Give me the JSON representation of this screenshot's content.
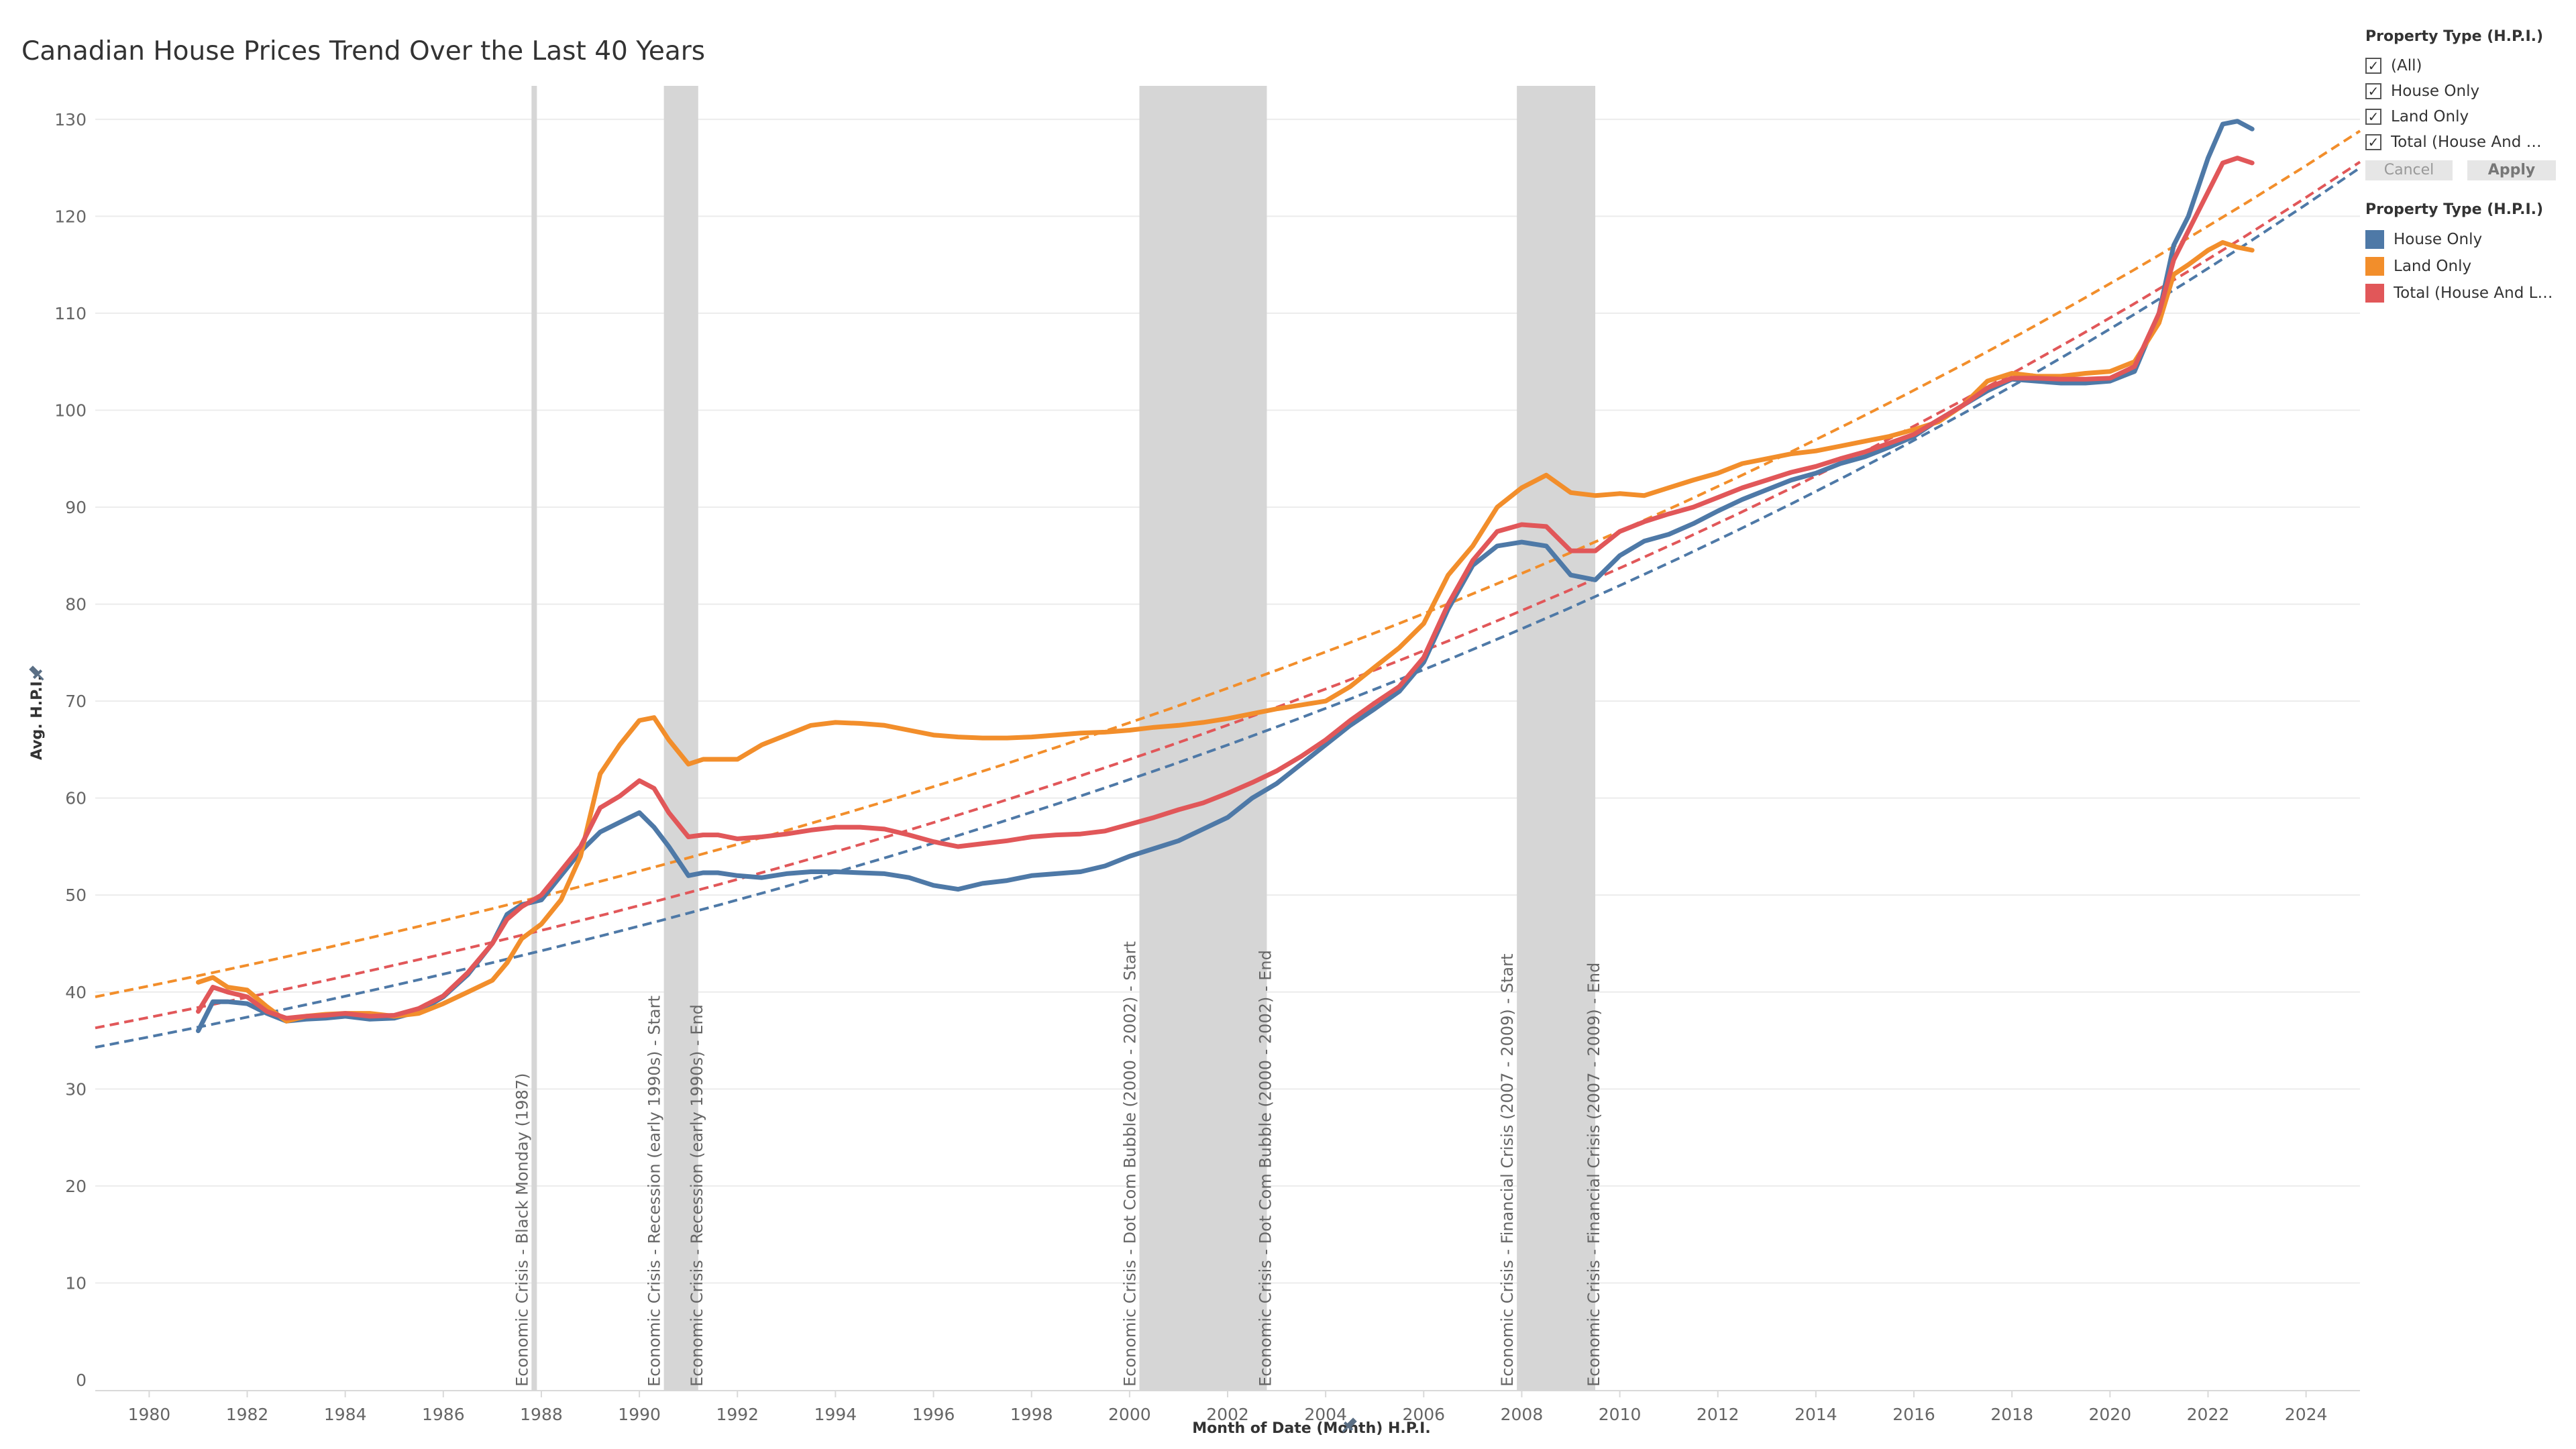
{
  "title": "Canadian House Prices Trend Over the Last 40 Years",
  "filter": {
    "title": "Property Type (H.P.I.)",
    "options": [
      "(All)",
      "House Only",
      "Land Only",
      "Total (House And L..."
    ],
    "check_glyph": "✓",
    "cancel_label": "Cancel",
    "apply_label": "Apply"
  },
  "legend": {
    "title": "Property Type (H.P.I.)",
    "items": [
      {
        "label": "House Only",
        "color": "#4e79a7"
      },
      {
        "label": "Land Only",
        "color": "#f28e2b"
      },
      {
        "label": "Total (House And La...",
        "color": "#e15759"
      }
    ]
  },
  "pin_icon": "pin-icon",
  "chart_data": {
    "type": "line",
    "title": "Canadian House Prices Trend Over the Last 40 Years",
    "xlabel": "Month of Date (Month) H.P.I.",
    "ylabel": "Avg. H.P.I.",
    "xlim": [
      1978.9,
      2025.1
    ],
    "ylim": [
      0,
      134
    ],
    "x_ticks": [
      1980,
      1982,
      1984,
      1986,
      1988,
      1990,
      1992,
      1994,
      1996,
      1998,
      2000,
      2002,
      2004,
      2006,
      2008,
      2010,
      2012,
      2014,
      2016,
      2018,
      2020,
      2022,
      2024
    ],
    "y_ticks": [
      0,
      10,
      20,
      30,
      40,
      50,
      60,
      70,
      80,
      90,
      100,
      110,
      120,
      130
    ],
    "grid": "horizontal",
    "legend_position": "right",
    "bands": [
      {
        "start": 1987.8,
        "end": 1987.9,
        "label": "Economic Crisis - Black Monday (1987)"
      },
      {
        "start": 1990.5,
        "end": 1991.2,
        "label": "Economic Crisis - Recession (early 1990s) - Start"
      },
      {
        "start": 1991.2,
        "end": 1991.2,
        "label": "Economic Crisis - Recession (early 1990s) - End"
      },
      {
        "start": 2000.2,
        "end": 2002.8,
        "label": "Economic Crisis - Dot Com Bubble (2000 - 2002) - Start"
      },
      {
        "start": 2002.8,
        "end": 2002.8,
        "label": "Economic Crisis - Dot Com Bubble (2000 - 2002) - End"
      },
      {
        "start": 2007.9,
        "end": 2009.5,
        "label": "Economic Crisis - Financial Crisis (2007 - 2009) - Start"
      },
      {
        "start": 2009.5,
        "end": 2009.5,
        "label": "Economic Crisis - Financial Crisis (2007 - 2009) - End"
      }
    ],
    "series": [
      {
        "name": "House Only",
        "color": "#4e79a7",
        "x": [
          1981.0,
          1981.3,
          1981.6,
          1982.0,
          1982.4,
          1982.8,
          1983.2,
          1983.6,
          1984.0,
          1984.5,
          1985.0,
          1985.5,
          1986.0,
          1986.5,
          1987.0,
          1987.3,
          1987.6,
          1988.0,
          1988.4,
          1988.8,
          1989.2,
          1989.6,
          1990.0,
          1990.3,
          1990.6,
          1991.0,
          1991.3,
          1991.6,
          1992.0,
          1992.5,
          1993.0,
          1993.5,
          1994.0,
          1994.5,
          1995.0,
          1995.5,
          1996.0,
          1996.5,
          1997.0,
          1997.5,
          1998.0,
          1998.5,
          1999.0,
          1999.5,
          2000.0,
          2000.5,
          2001.0,
          2001.5,
          2002.0,
          2002.5,
          2003.0,
          2003.5,
          2004.0,
          2004.5,
          2005.0,
          2005.5,
          2006.0,
          2006.5,
          2007.0,
          2007.5,
          2008.0,
          2008.5,
          2009.0,
          2009.5,
          2010.0,
          2010.5,
          2011.0,
          2011.5,
          2012.0,
          2012.5,
          2013.0,
          2013.5,
          2014.0,
          2014.5,
          2015.0,
          2015.5,
          2016.0,
          2016.5,
          2017.0,
          2017.5,
          2018.0,
          2018.5,
          2019.0,
          2019.5,
          2020.0,
          2020.5,
          2021.0,
          2021.3,
          2021.6,
          2022.0,
          2022.3,
          2022.6,
          2022.9
        ],
        "y": [
          36.0,
          39.0,
          39.0,
          38.8,
          37.8,
          37.0,
          37.2,
          37.3,
          37.5,
          37.2,
          37.3,
          38.0,
          39.5,
          41.8,
          45.0,
          48.0,
          49.0,
          49.5,
          52.0,
          54.5,
          56.5,
          57.5,
          58.5,
          57.0,
          55.0,
          52.0,
          52.3,
          52.3,
          52.0,
          51.8,
          52.2,
          52.4,
          52.4,
          52.3,
          52.2,
          51.8,
          51.0,
          50.6,
          51.2,
          51.5,
          52.0,
          52.2,
          52.4,
          53.0,
          54.0,
          54.8,
          55.6,
          56.8,
          58.0,
          60.0,
          61.5,
          63.5,
          65.5,
          67.5,
          69.2,
          71.0,
          74.0,
          79.5,
          84.0,
          86.0,
          86.4,
          86.0,
          83.0,
          82.5,
          85.0,
          86.5,
          87.2,
          88.3,
          89.6,
          90.8,
          91.8,
          92.8,
          93.5,
          94.5,
          95.2,
          96.2,
          97.3,
          99.0,
          100.5,
          102.0,
          103.2,
          103.0,
          102.8,
          102.8,
          103.0,
          104.0,
          110.0,
          117.0,
          120.0,
          126.0,
          129.5,
          129.8,
          129.0
        ]
      },
      {
        "name": "Land Only",
        "color": "#f28e2b",
        "x": [
          1981.0,
          1981.3,
          1981.6,
          1982.0,
          1982.4,
          1982.8,
          1983.2,
          1983.6,
          1984.0,
          1984.5,
          1985.0,
          1985.5,
          1986.0,
          1986.5,
          1987.0,
          1987.3,
          1987.6,
          1988.0,
          1988.4,
          1988.8,
          1989.2,
          1989.6,
          1990.0,
          1990.3,
          1990.6,
          1991.0,
          1991.3,
          1991.6,
          1992.0,
          1992.5,
          1993.0,
          1993.5,
          1994.0,
          1994.5,
          1995.0,
          1995.5,
          1996.0,
          1996.5,
          1997.0,
          1997.5,
          1998.0,
          1998.5,
          1999.0,
          1999.5,
          2000.0,
          2000.5,
          2001.0,
          2001.5,
          2002.0,
          2002.5,
          2003.0,
          2003.5,
          2004.0,
          2004.5,
          2005.0,
          2005.5,
          2006.0,
          2006.5,
          2007.0,
          2007.5,
          2008.0,
          2008.5,
          2009.0,
          2009.5,
          2010.0,
          2010.5,
          2011.0,
          2011.5,
          2012.0,
          2012.5,
          2013.0,
          2013.5,
          2014.0,
          2014.5,
          2015.0,
          2015.5,
          2016.0,
          2016.5,
          2017.0,
          2017.5,
          2018.0,
          2018.5,
          2019.0,
          2019.5,
          2020.0,
          2020.5,
          2021.0,
          2021.3,
          2021.6,
          2022.0,
          2022.3,
          2022.6,
          2022.9
        ],
        "y": [
          41.0,
          41.5,
          40.5,
          40.2,
          38.5,
          37.0,
          37.5,
          37.7,
          37.8,
          37.8,
          37.5,
          37.8,
          38.8,
          40.0,
          41.2,
          43.0,
          45.5,
          47.0,
          49.5,
          54.0,
          62.5,
          65.5,
          68.0,
          68.3,
          66.0,
          63.5,
          64.0,
          64.0,
          64.0,
          65.5,
          66.5,
          67.5,
          67.8,
          67.7,
          67.5,
          67.0,
          66.5,
          66.3,
          66.2,
          66.2,
          66.3,
          66.5,
          66.7,
          66.8,
          67.0,
          67.3,
          67.5,
          67.8,
          68.2,
          68.7,
          69.2,
          69.6,
          70.0,
          71.5,
          73.5,
          75.5,
          78.0,
          83.0,
          86.0,
          90.0,
          92.0,
          93.3,
          91.5,
          91.2,
          91.4,
          91.2,
          92.0,
          92.8,
          93.5,
          94.5,
          95.0,
          95.5,
          95.8,
          96.3,
          96.8,
          97.3,
          98.0,
          98.8,
          100.5,
          103.0,
          103.8,
          103.5,
          103.5,
          103.8,
          104.0,
          105.0,
          109.0,
          114.0,
          115.0,
          116.5,
          117.3,
          116.8,
          116.5
        ]
      },
      {
        "name": "Total (House And La...",
        "color": "#e15759",
        "x": [
          1981.0,
          1981.3,
          1981.6,
          1982.0,
          1982.4,
          1982.8,
          1983.2,
          1983.6,
          1984.0,
          1984.5,
          1985.0,
          1985.5,
          1986.0,
          1986.5,
          1987.0,
          1987.3,
          1987.6,
          1988.0,
          1988.4,
          1988.8,
          1989.2,
          1989.6,
          1990.0,
          1990.3,
          1990.6,
          1991.0,
          1991.3,
          1991.6,
          1992.0,
          1992.5,
          1993.0,
          1993.5,
          1994.0,
          1994.5,
          1995.0,
          1995.5,
          1996.0,
          1996.5,
          1997.0,
          1997.5,
          1998.0,
          1998.5,
          1999.0,
          1999.5,
          2000.0,
          2000.5,
          2001.0,
          2001.5,
          2002.0,
          2002.5,
          2003.0,
          2003.5,
          2004.0,
          2004.5,
          2005.0,
          2005.5,
          2006.0,
          2006.5,
          2007.0,
          2007.5,
          2008.0,
          2008.5,
          2009.0,
          2009.5,
          2010.0,
          2010.5,
          2011.0,
          2011.5,
          2012.0,
          2012.5,
          2013.0,
          2013.5,
          2014.0,
          2014.5,
          2015.0,
          2015.5,
          2016.0,
          2016.5,
          2017.0,
          2017.5,
          2018.0,
          2018.5,
          2019.0,
          2019.5,
          2020.0,
          2020.5,
          2021.0,
          2021.3,
          2021.6,
          2022.0,
          2022.3,
          2022.6,
          2022.9
        ],
        "y": [
          38.0,
          40.5,
          40.0,
          39.5,
          38.0,
          37.3,
          37.5,
          37.6,
          37.8,
          37.5,
          37.6,
          38.3,
          39.6,
          42.0,
          45.0,
          47.5,
          48.8,
          50.0,
          52.5,
          55.0,
          59.0,
          60.2,
          61.8,
          61.0,
          58.5,
          56.0,
          56.2,
          56.2,
          55.8,
          56.0,
          56.3,
          56.7,
          57.0,
          57.0,
          56.8,
          56.2,
          55.5,
          55.0,
          55.3,
          55.6,
          56.0,
          56.2,
          56.3,
          56.6,
          57.3,
          58.0,
          58.8,
          59.5,
          60.5,
          61.6,
          62.8,
          64.3,
          66.0,
          68.0,
          69.8,
          71.5,
          74.5,
          80.0,
          84.5,
          87.5,
          88.2,
          88.0,
          85.5,
          85.5,
          87.5,
          88.5,
          89.3,
          90.0,
          91.0,
          92.0,
          92.8,
          93.6,
          94.2,
          95.0,
          95.7,
          96.6,
          97.5,
          99.0,
          100.5,
          102.3,
          103.3,
          103.3,
          103.2,
          103.2,
          103.3,
          104.5,
          110.0,
          115.5,
          118.5,
          122.5,
          125.5,
          126.0,
          125.5
        ]
      }
    ],
    "trend_lines": [
      {
        "series": "House Only",
        "color": "#4e79a7",
        "x": [
          1978.9,
          2025.1
        ],
        "y": [
          34.3,
          125.0
        ]
      },
      {
        "series": "Land Only",
        "color": "#f28e2b",
        "x": [
          1978.9,
          2025.1
        ],
        "y": [
          39.5,
          128.8
        ]
      },
      {
        "series": "Total (House And La...",
        "color": "#e15759",
        "x": [
          1978.9,
          2025.1
        ],
        "y": [
          36.3,
          125.6
        ]
      }
    ]
  }
}
